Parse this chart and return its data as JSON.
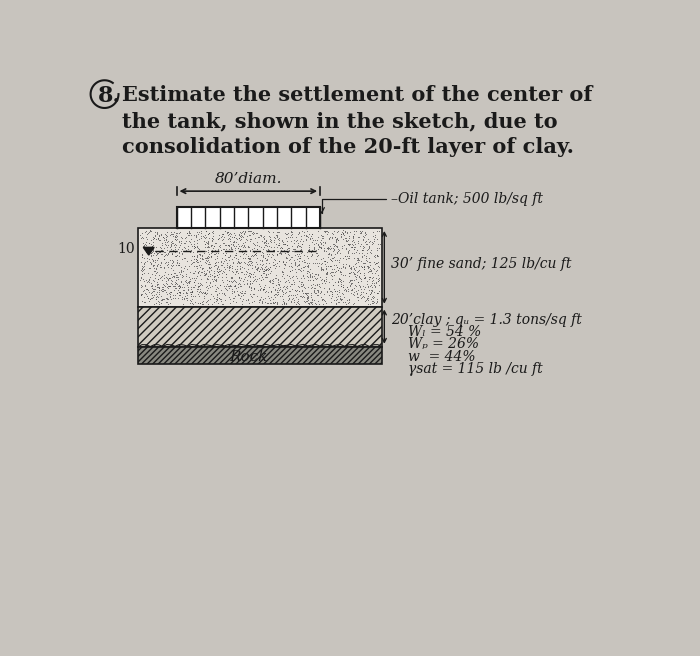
{
  "bg_color": "#c8c4be",
  "diam_label": "80’diam.",
  "tank_label": "–Oil tank; 500 lb/sq ft",
  "sand_label": "30’ fine sand; 125 lb/cu ft",
  "clay_label": "20’clay ; qᵤ = 1.3 tons/sq ft",
  "wl_label": "Wₗ = 54 %",
  "wp_label": "Wₚ = 26%",
  "w_label": "w  = 44%",
  "ysat_label": "γsat = 115 lb /cu ft",
  "rock_label": "Rock",
  "wt_label": "10",
  "text_color": "#1a1a1a",
  "title_line1": "8.)Estimate the settlement of the center of",
  "title_line2": "the tank, shown in the sketch, due to",
  "title_line3": "consolidation of the 20-ft layer of clay."
}
